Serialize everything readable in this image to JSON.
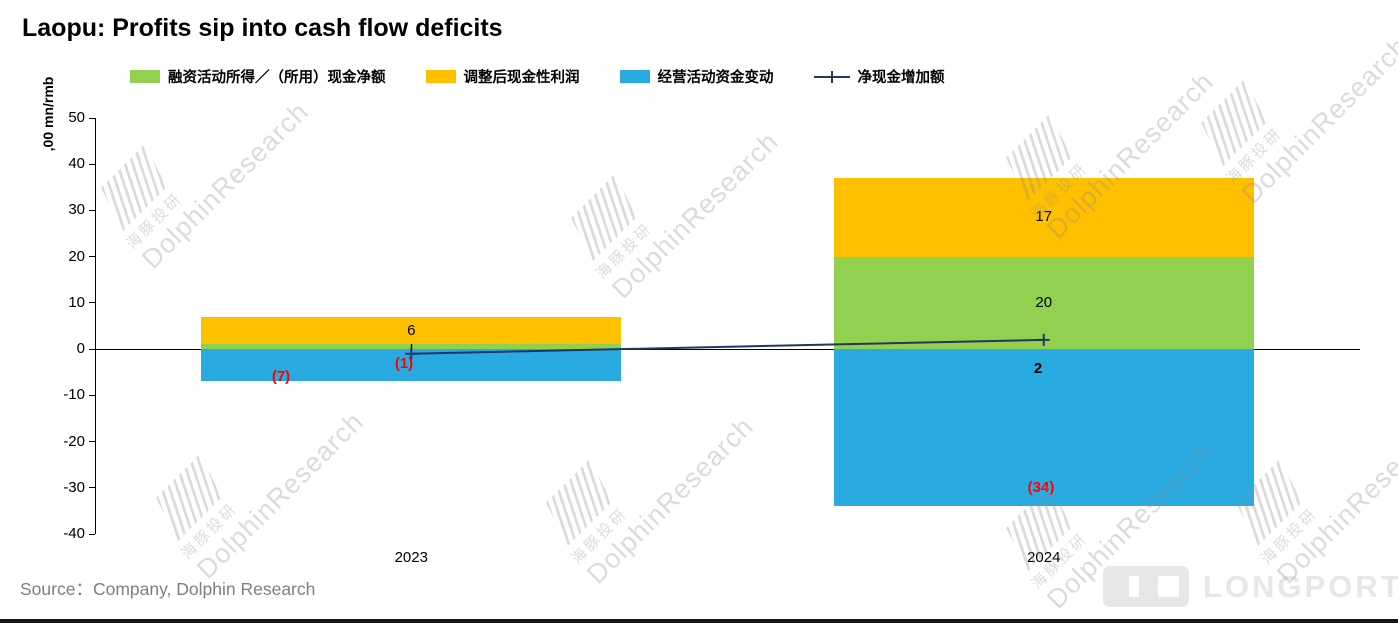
{
  "title": "Laopu: Profits sip into cash flow deficits",
  "y_axis_label": ",00 mn/rmb",
  "source": "Source：Company, Dolphin Research",
  "logo_text": "LONGPORT",
  "watermark": {
    "cn": "海豚投研",
    "en": "DolphinResearch"
  },
  "colors": {
    "green": "#92D050",
    "yellow": "#FFC000",
    "blue": "#29ABE2",
    "navy": "#1F3864",
    "red": "#FF0000",
    "axis": "#000000",
    "source_text": "#7F7F7F"
  },
  "legend": {
    "items": [
      {
        "label": "融资活动所得／（所用）现金净额",
        "swatch": "square",
        "color_key": "green"
      },
      {
        "label": "调整后现金性利润",
        "swatch": "square",
        "color_key": "yellow"
      },
      {
        "label": "经营活动资金变动",
        "swatch": "square",
        "color_key": "blue"
      },
      {
        "label": "净现金增加额",
        "swatch": "line-plus",
        "color_key": "navy"
      }
    ]
  },
  "chart_data": {
    "type": "bar",
    "subtype": "stacked-bars-with-line",
    "title": "Laopu: Profits sip into cash flow deficits",
    "categories": [
      "2023",
      "2024"
    ],
    "series": [
      {
        "name": "融资活动所得／（所用）现金净额",
        "type": "bar",
        "color_key": "green",
        "values": [
          1,
          20
        ],
        "labels": [
          {
            "text": "1",
            "color": "#000000"
          },
          {
            "text": "20",
            "color": "#000000"
          }
        ]
      },
      {
        "name": "调整后现金性利润",
        "type": "bar",
        "color_key": "yellow",
        "values": [
          6,
          17
        ],
        "labels": [
          {
            "text": "6",
            "color": "#000000"
          },
          {
            "text": "17",
            "color": "#000000"
          }
        ]
      },
      {
        "name": "经营活动资金变动",
        "type": "bar",
        "color_key": "blue",
        "values": [
          -7,
          -34
        ],
        "labels": [
          {
            "text": "(7)",
            "color": "#FF0000"
          },
          {
            "text": "(34)",
            "color": "#FF0000"
          }
        ]
      },
      {
        "name": "净现金增加额",
        "type": "line",
        "color_key": "navy",
        "values": [
          -1,
          2
        ],
        "labels": [
          {
            "text": "(1)",
            "color": "#FF0000"
          },
          {
            "text": "2",
            "color": "#000000"
          }
        ]
      }
    ],
    "xlabel": "",
    "ylabel": ",00 mn/rmb",
    "ylim": [
      -40,
      50
    ],
    "yticks": [
      50,
      40,
      30,
      20,
      10,
      0,
      -10,
      -20,
      -30,
      -40
    ],
    "grid": false,
    "legend_position": "top"
  }
}
